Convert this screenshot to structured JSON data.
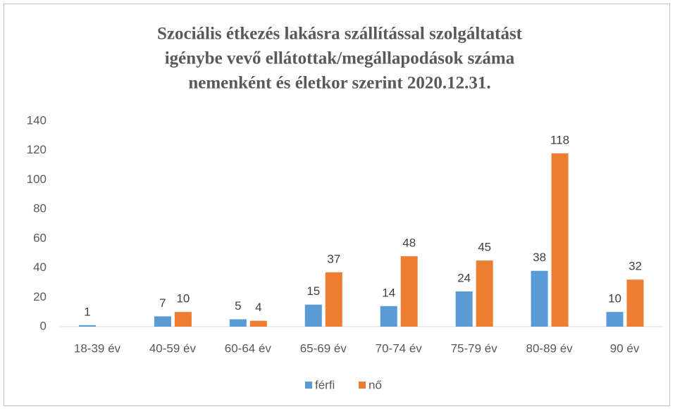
{
  "chart_data": {
    "type": "bar",
    "title": [
      "Szociális étkezés lakásra szállítással szolgáltatást",
      "igénybe vevő ellátottak/megállapodások száma",
      "nemenként és életkor szerint 2020.12.31."
    ],
    "categories": [
      "18-39 év",
      "40-59 év",
      "60-64 év",
      "65-69 év",
      "70-74 év",
      "75-79 év",
      "80-89 év",
      "90 év"
    ],
    "series": [
      {
        "name": "férfi",
        "color": "#5b9bd5",
        "values": [
          1,
          7,
          5,
          15,
          14,
          24,
          38,
          10
        ]
      },
      {
        "name": "nő",
        "color": "#ed7d31",
        "values": [
          null,
          10,
          4,
          37,
          48,
          45,
          118,
          32
        ]
      }
    ],
    "ylim": [
      0,
      140
    ],
    "yticks": [
      0,
      20,
      40,
      60,
      80,
      100,
      120,
      140
    ],
    "grid": false,
    "legend": "bottom"
  }
}
